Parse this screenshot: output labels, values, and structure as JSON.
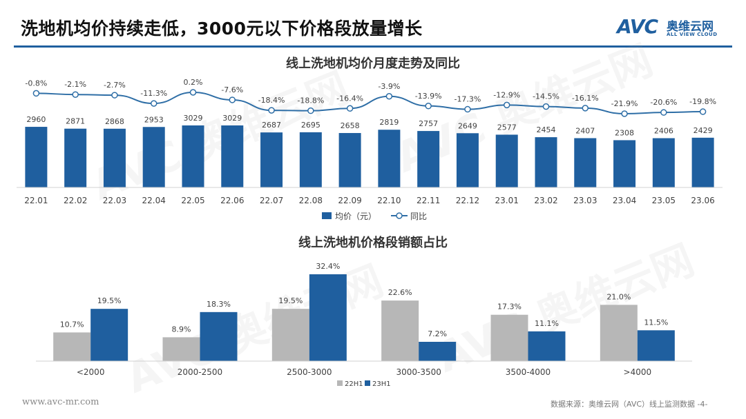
{
  "page": {
    "title": "洗地机均价持续走低，3000元以下价格段放量增长",
    "logo_mark": "AVC",
    "logo_cn": "奥维云网",
    "logo_en": "ALL VIEW CLOUD",
    "footer_url": "www.avc-mr.com",
    "footer_source": "数据来源：奥维云网（AVC）线上监测数据  -4-",
    "watermark": "AVC 奥维云网"
  },
  "colors": {
    "blue": "#1f5f9f",
    "gray": "#b7b7b7",
    "line": "#2e6ea6"
  },
  "chart_data": [
    {
      "type": "bar",
      "title": "线上洗地机均价月度走势及同比",
      "categories": [
        "22.01",
        "22.02",
        "22.03",
        "22.04",
        "22.05",
        "22.06",
        "22.07",
        "22.08",
        "22.09",
        "22.10",
        "22.11",
        "22.12",
        "23.01",
        "23.02",
        "23.03",
        "23.04",
        "23.05",
        "23.06"
      ],
      "series": [
        {
          "name": "均价（元）",
          "kind": "bar",
          "values": [
            2960,
            2871,
            2868,
            2953,
            3029,
            3029,
            2687,
            2695,
            2658,
            2819,
            2757,
            2649,
            2577,
            2454,
            2407,
            2308,
            2406,
            2429
          ]
        },
        {
          "name": "同比",
          "kind": "line",
          "values": [
            -0.8,
            -2.1,
            -2.7,
            -11.3,
            0.2,
            -7.6,
            -18.4,
            -18.8,
            -16.4,
            -3.9,
            -13.9,
            -17.3,
            -12.9,
            -14.5,
            -16.1,
            -21.9,
            -20.6,
            -19.8
          ],
          "labels": [
            "-0.8%",
            "-2.1%",
            "-2.7%",
            "-11.3%",
            "0.2%",
            "-7.6%",
            "-18.4%",
            "-18.8%",
            "-16.4%",
            "-3.9%",
            "-13.9%",
            "-17.3%",
            "-12.9%",
            "-14.5%",
            "-16.1%",
            "-21.9%",
            "-20.6%",
            "-19.8%"
          ]
        }
      ],
      "legend_position": "bottom",
      "grid": false
    },
    {
      "type": "bar",
      "title": "线上洗地机价格段销额占比",
      "categories": [
        "<2000",
        "2000-2500",
        "2500-3000",
        "3000-3500",
        "3500-4000",
        ">4000"
      ],
      "series": [
        {
          "name": "22H1",
          "values": [
            10.7,
            8.9,
            19.5,
            22.6,
            17.3,
            21.0
          ],
          "labels": [
            "10.7%",
            "8.9%",
            "19.5%",
            "22.6%",
            "17.3%",
            "21.0%"
          ]
        },
        {
          "name": "23H1",
          "values": [
            19.5,
            18.3,
            32.4,
            7.2,
            11.1,
            11.5
          ],
          "labels": [
            "19.5%",
            "18.3%",
            "32.4%",
            "7.2%",
            "11.1%",
            "11.5%"
          ]
        }
      ],
      "legend_position": "bottom",
      "grid": false
    }
  ]
}
